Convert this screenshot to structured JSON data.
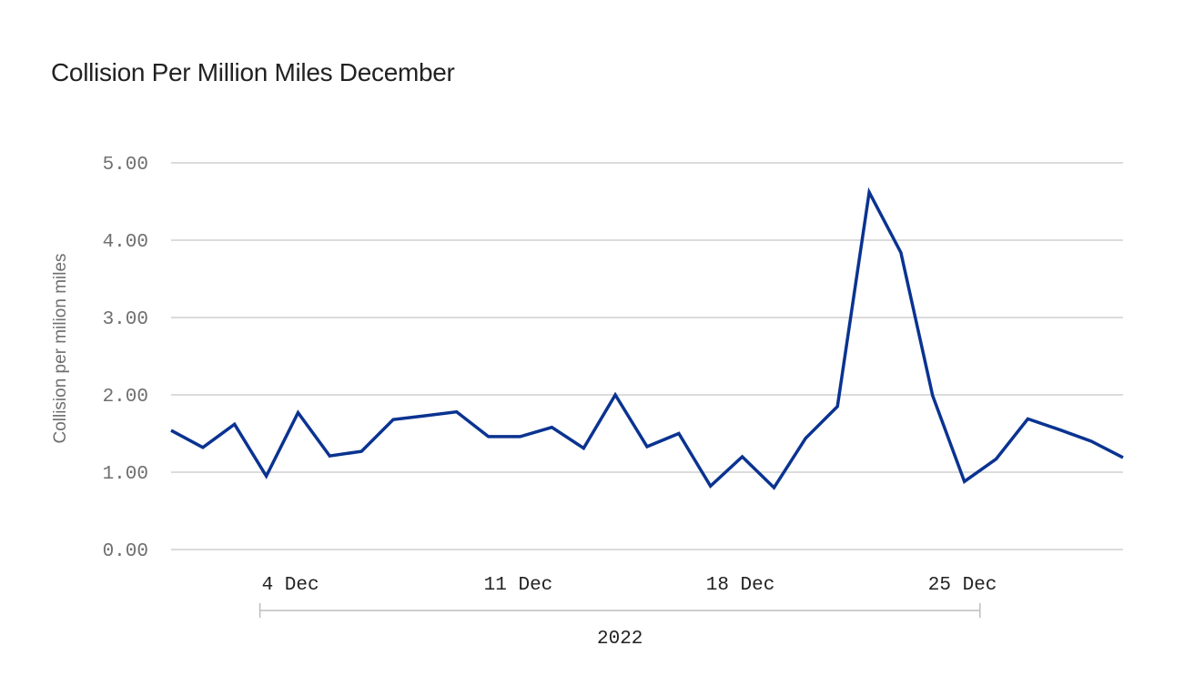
{
  "chart_data": {
    "type": "line",
    "title": "Collision Per Million Miles December",
    "ylabel": "Collision per milion miles",
    "xlabel": "",
    "year_label": "2022",
    "ylim": [
      0,
      5
    ],
    "y_ticks": [
      "0.00",
      "1.00",
      "2.00",
      "3.00",
      "4.00",
      "5.00"
    ],
    "y_tick_values": [
      0,
      1,
      2,
      3,
      4,
      5
    ],
    "x_ticks": [
      {
        "day": 4,
        "label": "4 Dec"
      },
      {
        "day": 11,
        "label": "11 Dec"
      },
      {
        "day": 18,
        "label": "18 Dec"
      },
      {
        "day": 25,
        "label": "25 Dec"
      }
    ],
    "xlim": [
      1,
      31
    ],
    "grid": true,
    "color": "#0a3391",
    "series": [
      {
        "name": "Collision per million miles",
        "x": [
          1,
          2,
          3,
          4,
          5,
          6,
          7,
          8,
          9,
          10,
          11,
          12,
          13,
          14,
          15,
          16,
          17,
          18,
          19,
          20,
          21,
          22,
          23,
          24,
          25,
          26,
          27,
          28,
          29,
          30,
          31
        ],
        "values": [
          1.54,
          1.32,
          1.62,
          0.95,
          1.77,
          1.21,
          1.27,
          1.68,
          1.73,
          1.78,
          1.46,
          1.46,
          1.58,
          1.31,
          2.0,
          1.33,
          1.5,
          0.82,
          1.2,
          0.8,
          1.44,
          1.85,
          4.62,
          3.84,
          1.99,
          0.88,
          1.17,
          1.69,
          1.55,
          1.4,
          1.19
        ]
      }
    ]
  }
}
